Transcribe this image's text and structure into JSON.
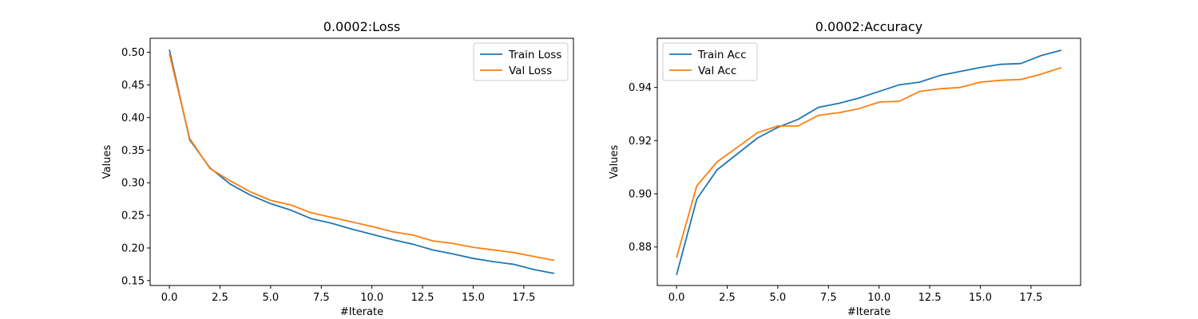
{
  "colors": {
    "train": "#1f77b4",
    "val": "#ff7f0e"
  },
  "chart_data": [
    {
      "type": "line",
      "title": "0.0002:Loss",
      "xlabel": "#Iterate",
      "ylabel": "Values",
      "xlim": [
        -0.95,
        19.95
      ],
      "ylim": [
        0.1425,
        0.5215
      ],
      "xticks": [
        0,
        2.5,
        5,
        7.5,
        10,
        12.5,
        15,
        17.5
      ],
      "xtick_labels": [
        "0.0",
        "2.5",
        "5.0",
        "7.5",
        "10.0",
        "12.5",
        "15.0",
        "17.5"
      ],
      "yticks": [
        0.15,
        0.2,
        0.25,
        0.3,
        0.35,
        0.4,
        0.45,
        0.5
      ],
      "ytick_labels": [
        "0.15",
        "0.20",
        "0.25",
        "0.30",
        "0.35",
        "0.40",
        "0.45",
        "0.50"
      ],
      "legend_position": "top-right",
      "grid": false,
      "x": [
        0,
        1,
        2,
        3,
        4,
        5,
        6,
        7,
        8,
        9,
        10,
        11,
        12,
        13,
        14,
        15,
        16,
        17,
        18,
        19
      ],
      "series": [
        {
          "name": "Train Loss",
          "color_key": "train",
          "values": [
            0.504,
            0.366,
            0.323,
            0.298,
            0.281,
            0.268,
            0.258,
            0.245,
            0.238,
            0.229,
            0.221,
            0.213,
            0.206,
            0.197,
            0.191,
            0.184,
            0.179,
            0.175,
            0.167,
            0.161
          ]
        },
        {
          "name": "Val Loss",
          "color_key": "val",
          "values": [
            0.498,
            0.368,
            0.322,
            0.303,
            0.286,
            0.273,
            0.266,
            0.254,
            0.247,
            0.24,
            0.233,
            0.225,
            0.22,
            0.211,
            0.207,
            0.201,
            0.197,
            0.193,
            0.187,
            0.181
          ]
        }
      ]
    },
    {
      "type": "line",
      "title": "0.0002:Accuracy",
      "xlabel": "#Iterate",
      "ylabel": "Values",
      "xlim": [
        -0.95,
        19.95
      ],
      "ylim": [
        0.8655,
        0.9585
      ],
      "xticks": [
        0,
        2.5,
        5,
        7.5,
        10,
        12.5,
        15,
        17.5
      ],
      "xtick_labels": [
        "0.0",
        "2.5",
        "5.0",
        "7.5",
        "10.0",
        "12.5",
        "15.0",
        "17.5"
      ],
      "yticks": [
        0.88,
        0.9,
        0.92,
        0.94
      ],
      "ytick_labels": [
        "0.88",
        "0.90",
        "0.92",
        "0.94"
      ],
      "legend_position": "top-left",
      "grid": false,
      "x": [
        0,
        1,
        2,
        3,
        4,
        5,
        6,
        7,
        8,
        9,
        10,
        11,
        12,
        13,
        14,
        15,
        16,
        17,
        18,
        19
      ],
      "series": [
        {
          "name": "Train Acc",
          "color_key": "train",
          "values": [
            0.8695,
            0.898,
            0.909,
            0.915,
            0.921,
            0.925,
            0.928,
            0.9325,
            0.934,
            0.936,
            0.9385,
            0.941,
            0.942,
            0.9445,
            0.946,
            0.9475,
            0.9487,
            0.949,
            0.952,
            0.954
          ]
        },
        {
          "name": "Val Acc",
          "color_key": "val",
          "values": [
            0.876,
            0.903,
            0.912,
            0.9175,
            0.923,
            0.9255,
            0.9255,
            0.9295,
            0.9305,
            0.932,
            0.9345,
            0.9348,
            0.9385,
            0.9395,
            0.94,
            0.942,
            0.9427,
            0.943,
            0.945,
            0.9475
          ]
        }
      ]
    }
  ]
}
